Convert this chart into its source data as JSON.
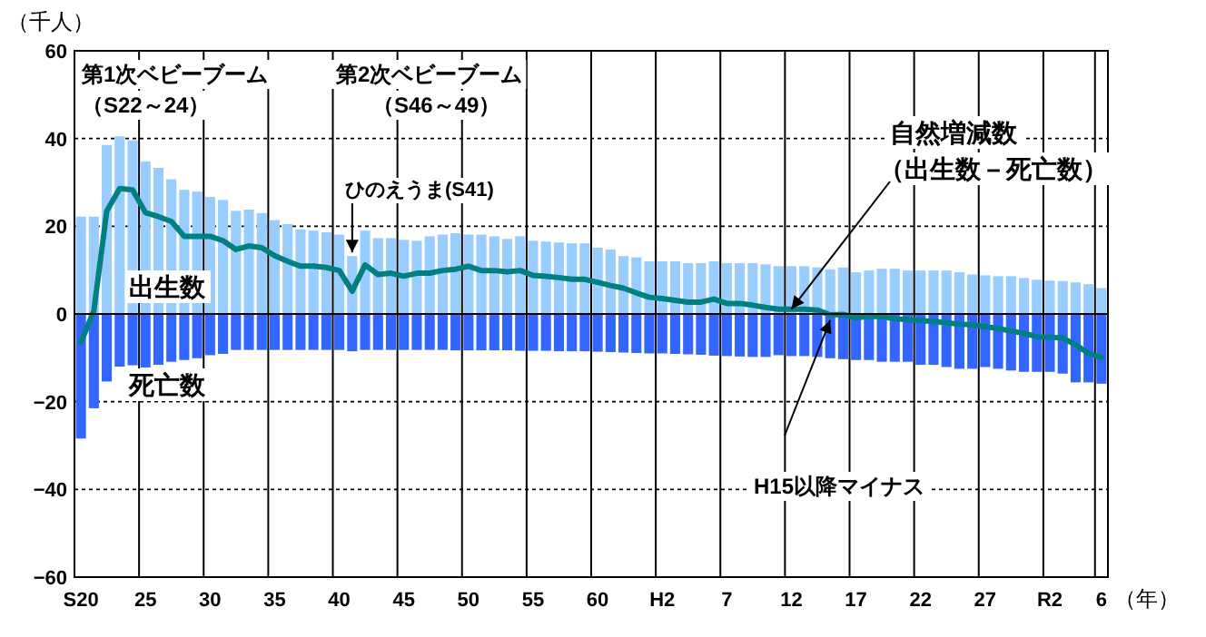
{
  "chart_data": {
    "type": "bar",
    "ylabel": "（千人）",
    "xlabel": "（年）",
    "categories": [
      "S20",
      null,
      null,
      null,
      null,
      "25",
      null,
      null,
      null,
      null,
      "30",
      null,
      null,
      null,
      null,
      "35",
      null,
      null,
      null,
      null,
      "40",
      null,
      null,
      null,
      null,
      "45",
      null,
      null,
      null,
      null,
      "50",
      null,
      null,
      null,
      null,
      "55",
      null,
      null,
      null,
      null,
      "60",
      null,
      null,
      null,
      null,
      "H2",
      null,
      null,
      null,
      null,
      "7",
      null,
      null,
      null,
      null,
      "12",
      null,
      null,
      null,
      null,
      "17",
      null,
      null,
      null,
      null,
      "22",
      null,
      null,
      null,
      null,
      "27",
      null,
      null,
      null,
      null,
      "R2",
      null,
      null,
      null,
      "6"
    ],
    "series": [
      {
        "name": "出生数",
        "color": "#99ccff",
        "values": [
          22.2,
          22.2,
          38.5,
          40.5,
          39.6,
          34.8,
          33.3,
          30.7,
          28.3,
          27.9,
          26.7,
          26.0,
          23.5,
          23.8,
          23.0,
          21.4,
          20.5,
          19.3,
          19.0,
          18.6,
          18.1,
          13.2,
          19.0,
          17.3,
          17.3,
          16.9,
          16.7,
          17.7,
          18.1,
          18.4,
          18.1,
          18.1,
          17.7,
          17.1,
          17.7,
          16.7,
          16.5,
          16.3,
          16.1,
          16.1,
          15.1,
          14.7,
          13.2,
          12.9,
          12.0,
          12.0,
          12.0,
          11.6,
          11.6,
          12.0,
          11.6,
          11.6,
          11.6,
          11.3,
          10.9,
          10.9,
          10.9,
          10.6,
          10.2,
          10.6,
          9.5,
          9.9,
          10.3,
          10.3,
          9.9,
          9.9,
          9.9,
          9.9,
          9.5,
          9.0,
          8.8,
          8.6,
          8.6,
          8.2,
          7.8,
          7.6,
          7.5,
          7.2,
          6.8,
          5.9
        ]
      },
      {
        "name": "死亡数",
        "color": "#3366ff",
        "values": [
          -28.4,
          -21.5,
          -15.4,
          -12.0,
          -11.7,
          -12.2,
          -11.6,
          -10.9,
          -10.5,
          -10.1,
          -9.4,
          -9.1,
          -8.2,
          -8.2,
          -8.2,
          -8.2,
          -8.2,
          -8.2,
          -8.2,
          -8.2,
          -8.2,
          -8.5,
          -8.2,
          -8.2,
          -8.2,
          -8.2,
          -8.2,
          -8.2,
          -8.2,
          -8.3,
          -8.3,
          -8.3,
          -8.3,
          -8.3,
          -8.4,
          -8.4,
          -8.4,
          -8.5,
          -8.5,
          -8.5,
          -8.6,
          -8.7,
          -8.8,
          -8.9,
          -9.0,
          -9.0,
          -9.1,
          -9.2,
          -9.3,
          -9.5,
          -9.6,
          -9.7,
          -9.8,
          -9.8,
          -9.4,
          -9.6,
          -9.6,
          -9.8,
          -10.1,
          -10.3,
          -10.5,
          -10.5,
          -10.9,
          -10.9,
          -10.9,
          -11.6,
          -11.6,
          -12.1,
          -12.5,
          -12.5,
          -12.1,
          -12.5,
          -12.9,
          -13.2,
          -13.2,
          -13.2,
          -13.6,
          -15.6,
          -15.6,
          -15.9
        ]
      },
      {
        "type": "line",
        "color": "#008080",
        "values": [
          -6.5,
          0.7,
          23.5,
          28.6,
          28.3,
          23.1,
          22.2,
          21.1,
          17.7,
          17.7,
          17.7,
          16.7,
          14.7,
          15.5,
          15.1,
          13.3,
          12.0,
          10.9,
          10.9,
          10.6,
          9.9,
          5.2,
          11.2,
          9.0,
          9.3,
          8.6,
          9.3,
          9.3,
          9.9,
          10.2,
          10.9,
          9.9,
          9.9,
          9.6,
          9.9,
          8.8,
          8.6,
          8.3,
          7.9,
          7.9,
          7.2,
          6.5,
          5.9,
          4.8,
          3.8,
          3.5,
          3.1,
          2.7,
          2.7,
          3.4,
          2.4,
          2.4,
          2.0,
          1.5,
          1.1,
          1.1,
          1.1,
          0.9,
          -0.2,
          -0.1,
          -0.9,
          -0.5,
          -0.6,
          -1.1,
          -1.3,
          -1.5,
          -1.7,
          -2.0,
          -2.3,
          -2.5,
          -2.9,
          -3.3,
          -3.9,
          -4.4,
          -5.2,
          -5.3,
          -5.5,
          -7.0,
          -9.0,
          -9.9
        ]
      }
    ],
    "stacked": true,
    "ylim": [
      -60,
      60
    ],
    "yticks": [
      -60,
      -40,
      -20,
      0,
      20,
      40,
      60
    ],
    "grid": true,
    "annotations": [
      "第1次ベビーブーム",
      "（S22～24）",
      "第2次ベビーブーム",
      "（S46～49）",
      {
        "text": "ひのえうま(S41)",
        "y": 13.2
      },
      "自然増減数",
      {
        "text": "（出生数－死亡数）",
        "x": "12",
        "y": 1.1
      },
      "H15以降マイナス"
    ]
  }
}
